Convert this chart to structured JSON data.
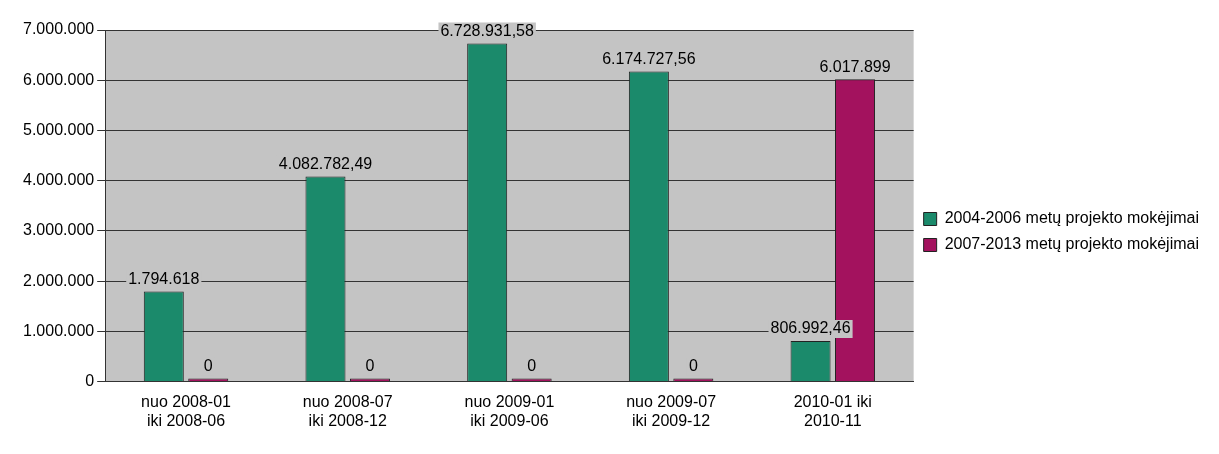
{
  "chart_data": {
    "type": "bar",
    "categories": [
      "nuo 2008-01 iki 2008-06",
      "nuo 2008-07 iki 2008-12",
      "nuo 2009-01 iki 2009-06",
      "nuo 2009-07 iki 2009-12",
      "2010-01 iki 2010-11"
    ],
    "series": [
      {
        "name": "2004-2006 metų projekto mokėjimai",
        "color": "#1b8a6b",
        "values": [
          1794618,
          4082782.49,
          6728931.58,
          6174727.56,
          806992.46
        ],
        "value_labels": [
          "1.794.618",
          "4.082.782,49",
          "6.728.931,58",
          "6.174.727,56",
          "806.992,46"
        ]
      },
      {
        "name": "2007-2013 metų projekto mokėjimai",
        "color": "#a3125e",
        "values": [
          0,
          0,
          0,
          0,
          6017899
        ],
        "value_labels": [
          "0",
          "0",
          "0",
          "0",
          "6.017.899"
        ]
      }
    ],
    "ylim": [
      0,
      7000000
    ],
    "yticks": [
      {
        "value": 0,
        "label": "0"
      },
      {
        "value": 1000000,
        "label": "1.000.000"
      },
      {
        "value": 2000000,
        "label": "2.000.000"
      },
      {
        "value": 3000000,
        "label": "3.000.000"
      },
      {
        "value": 4000000,
        "label": "4.000.000"
      },
      {
        "value": 5000000,
        "label": "5.000.000"
      },
      {
        "value": 6000000,
        "label": "6.000.000"
      },
      {
        "value": 7000000,
        "label": "7.000.000"
      }
    ],
    "grid": "y",
    "legend": "right"
  }
}
